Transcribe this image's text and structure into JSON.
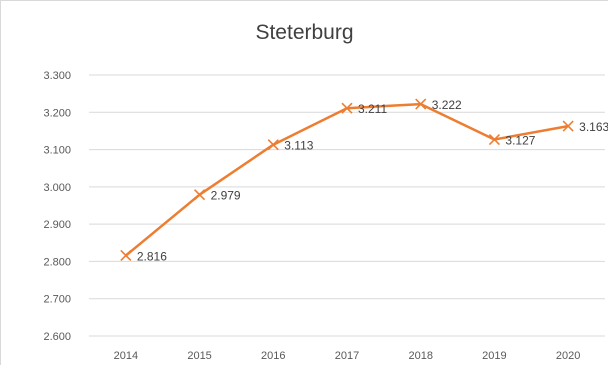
{
  "chart_data": {
    "type": "line",
    "title": "Steterburg",
    "xlabel": "",
    "ylabel": "",
    "categories": [
      "2014",
      "2015",
      "2016",
      "2017",
      "2018",
      "2019",
      "2020"
    ],
    "series": [
      {
        "values": [
          2816,
          2979,
          3113,
          3211,
          3222,
          3127,
          3163
        ],
        "data_labels": [
          "2.816",
          "2.979",
          "3.113",
          "3.211",
          "3.222",
          "3.127",
          "3.163"
        ],
        "color": "#ed7d31",
        "marker": "x"
      }
    ],
    "ylim": [
      2600,
      3300
    ],
    "y_ticks": [
      2600,
      2700,
      2800,
      2900,
      3000,
      3100,
      3200,
      3300
    ],
    "y_tick_labels": [
      "2.600",
      "2.700",
      "2.800",
      "2.900",
      "3.000",
      "3.100",
      "3.200",
      "3.300"
    ],
    "grid": true,
    "legend": "none",
    "gridline_color": "#d9d9d9",
    "text_color": "#595959"
  }
}
